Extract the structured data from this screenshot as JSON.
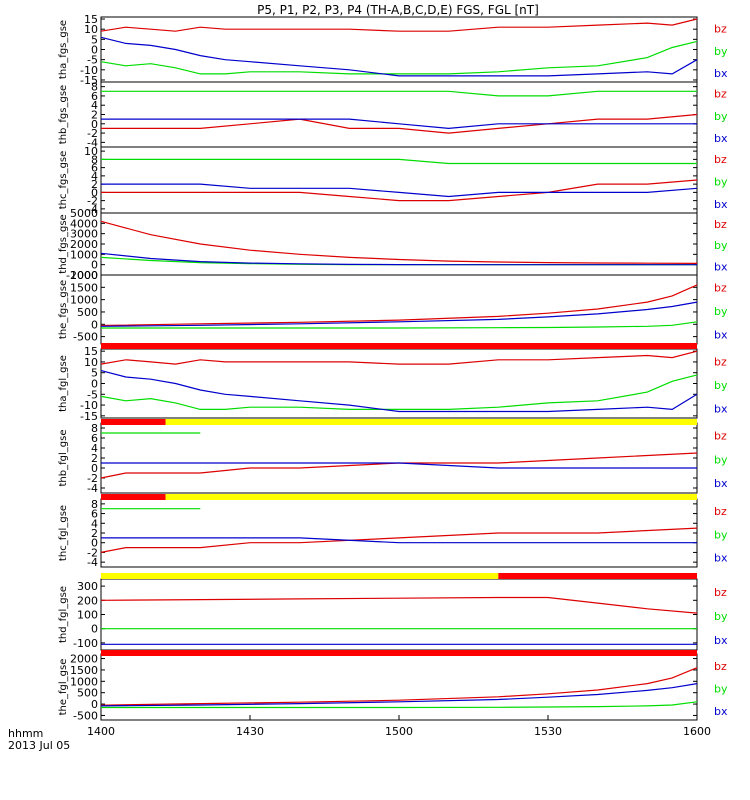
{
  "title": "P5, P1, P2, P3, P4 (TH-A,B,C,D,E) FGS, FGL [nT]",
  "x_axis": {
    "tick_labels": [
      "1400",
      "1430",
      "1500",
      "1530",
      "1600"
    ],
    "label_line1": "hhmm",
    "label_line2": "2013 Jul 05"
  },
  "colors": {
    "bz": "#dd0000",
    "by": "#00dd00",
    "bx": "#0000cc",
    "bar_red": "#ff0000",
    "bar_yellow": "#ffff00",
    "axis": "#000000"
  },
  "legend_labels": [
    "bz",
    "by",
    "bx"
  ],
  "chart_data": [
    {
      "type": "line",
      "ylabel": "tha_fgs_gse",
      "ylim": [
        -16,
        16
      ],
      "yticks": [
        "-15",
        "-10",
        "-5",
        "0",
        "5",
        "10",
        "15"
      ],
      "x": [
        0,
        5,
        10,
        15,
        20,
        25,
        30,
        40,
        50,
        60,
        70,
        80,
        90,
        100,
        110,
        115,
        120
      ],
      "series": [
        {
          "name": "bz",
          "values": [
            9,
            11,
            10,
            9,
            11,
            10,
            10,
            10,
            10,
            9,
            9,
            11,
            11,
            12,
            13,
            12,
            15
          ]
        },
        {
          "name": "by",
          "values": [
            -6,
            -8,
            -7,
            -9,
            -12,
            -12,
            -11,
            -11,
            -12,
            -12,
            -12,
            -11,
            -9,
            -8,
            -4,
            1,
            4
          ]
        },
        {
          "name": "bx",
          "values": [
            6,
            3,
            2,
            0,
            -3,
            -5,
            -6,
            -8,
            -10,
            -13,
            -13,
            -13,
            -13,
            -12,
            -11,
            -12,
            -5
          ]
        }
      ]
    },
    {
      "type": "line",
      "ylabel": "thb_fgs_gse",
      "ylim": [
        -5,
        9
      ],
      "yticks": [
        "-4",
        "-2",
        "0",
        "2",
        "4",
        "6",
        "8"
      ],
      "x": [
        0,
        10,
        20,
        30,
        40,
        50,
        60,
        70,
        80,
        90,
        100,
        110,
        120
      ],
      "series": [
        {
          "name": "bz",
          "values": [
            -1,
            -1,
            -1,
            0,
            1,
            -1,
            -1,
            -2,
            -1,
            0,
            1,
            1,
            2
          ]
        },
        {
          "name": "by",
          "values": [
            7,
            7,
            7,
            7,
            7,
            7,
            7,
            7,
            6,
            6,
            7,
            7,
            7
          ]
        },
        {
          "name": "bx",
          "values": [
            1,
            1,
            1,
            1,
            1,
            1,
            0,
            -1,
            0,
            0,
            0,
            0,
            0
          ]
        }
      ]
    },
    {
      "type": "line",
      "ylabel": "thc_fgs_gse",
      "ylim": [
        -5,
        11
      ],
      "yticks": [
        "-4",
        "-2",
        "0",
        "2",
        "4",
        "6",
        "8",
        "10"
      ],
      "x": [
        0,
        10,
        20,
        30,
        40,
        50,
        60,
        70,
        80,
        90,
        100,
        110,
        120
      ],
      "series": [
        {
          "name": "bz",
          "values": [
            0,
            0,
            0,
            0,
            0,
            -1,
            -2,
            -2,
            -1,
            0,
            2,
            2,
            3
          ]
        },
        {
          "name": "by",
          "values": [
            8,
            8,
            8,
            8,
            8,
            8,
            8,
            7,
            7,
            7,
            7,
            7,
            7
          ]
        },
        {
          "name": "bx",
          "values": [
            2,
            2,
            2,
            1,
            1,
            1,
            0,
            -1,
            0,
            0,
            0,
            0,
            1
          ]
        }
      ]
    },
    {
      "type": "line",
      "ylabel": "thd_fgs_gse",
      "ylim": [
        -1000,
        5000
      ],
      "yticks": [
        "-1000",
        "0",
        "1000",
        "2000",
        "3000",
        "4000",
        "5000"
      ],
      "x": [
        0,
        10,
        20,
        30,
        40,
        50,
        60,
        70,
        80,
        90,
        100,
        110,
        120
      ],
      "series": [
        {
          "name": "bz",
          "values": [
            4200,
            2900,
            2000,
            1400,
            1000,
            700,
            500,
            350,
            260,
            200,
            160,
            140,
            120
          ]
        },
        {
          "name": "by",
          "values": [
            700,
            400,
            200,
            100,
            40,
            0,
            0,
            0,
            0,
            0,
            0,
            0,
            0
          ]
        },
        {
          "name": "bx",
          "values": [
            1100,
            600,
            300,
            150,
            80,
            30,
            10,
            0,
            0,
            0,
            0,
            0,
            0
          ]
        }
      ]
    },
    {
      "type": "line",
      "ylabel": "the_fgs_gse",
      "ylim": [
        -800,
        2000
      ],
      "yticks": [
        "-500",
        "0",
        "500",
        "1000",
        "1500",
        "2000"
      ],
      "x": [
        0,
        20,
        40,
        60,
        80,
        90,
        100,
        110,
        115,
        120
      ],
      "series": [
        {
          "name": "bz",
          "values": [
            -50,
            20,
            80,
            170,
            320,
            450,
            620,
            900,
            1150,
            1600
          ]
        },
        {
          "name": "by",
          "values": [
            -150,
            -150,
            -150,
            -150,
            -140,
            -130,
            -110,
            -80,
            -40,
            100
          ]
        },
        {
          "name": "bx",
          "values": [
            -80,
            -40,
            20,
            100,
            200,
            300,
            420,
            600,
            720,
            900
          ]
        }
      ]
    },
    {
      "type": "line",
      "ylabel": "tha_fgl_gse",
      "ylim": [
        -16,
        16
      ],
      "yticks": [
        "-15",
        "-10",
        "-5",
        "0",
        "5",
        "10",
        "15"
      ],
      "x": [
        0,
        5,
        10,
        15,
        20,
        25,
        30,
        40,
        50,
        60,
        70,
        80,
        90,
        100,
        110,
        115,
        120
      ],
      "series": [
        {
          "name": "bz",
          "values": [
            9,
            11,
            10,
            9,
            11,
            10,
            10,
            10,
            10,
            9,
            9,
            11,
            11,
            12,
            13,
            12,
            15
          ]
        },
        {
          "name": "by",
          "values": [
            -6,
            -8,
            -7,
            -9,
            -12,
            -12,
            -11,
            -11,
            -12,
            -12,
            -12,
            -11,
            -9,
            -8,
            -4,
            1,
            4
          ]
        },
        {
          "name": "bx",
          "values": [
            6,
            3,
            2,
            0,
            -3,
            -5,
            -6,
            -8,
            -10,
            -13,
            -13,
            -13,
            -13,
            -12,
            -11,
            -12,
            -5
          ]
        }
      ]
    },
    {
      "type": "line",
      "ylabel": "thb_fgl_gse",
      "ylim": [
        -5,
        9
      ],
      "yticks": [
        "-4",
        "-2",
        "0",
        "2",
        "4",
        "6",
        "8"
      ],
      "x": [
        0,
        5,
        10,
        15,
        20,
        30,
        40,
        60,
        80,
        100,
        120
      ],
      "series": [
        {
          "name": "bz",
          "values": [
            -2,
            -1,
            -1,
            -1,
            -1,
            0,
            0,
            1,
            1,
            2,
            3
          ]
        },
        {
          "name": "by",
          "values": [
            7,
            7,
            7,
            7,
            7,
            null,
            null,
            null,
            null,
            null,
            null
          ]
        },
        {
          "name": "bx",
          "values": [
            1,
            1,
            1,
            1,
            1,
            1,
            1,
            1,
            0,
            0,
            0
          ]
        }
      ]
    },
    {
      "type": "line",
      "ylabel": "thc_fgl_gse",
      "ylim": [
        -5,
        9
      ],
      "yticks": [
        "-4",
        "-2",
        "0",
        "2",
        "4",
        "6",
        "8"
      ],
      "x": [
        0,
        5,
        10,
        15,
        20,
        30,
        40,
        60,
        80,
        100,
        120
      ],
      "series": [
        {
          "name": "bz",
          "values": [
            -2,
            -1,
            -1,
            -1,
            -1,
            0,
            0,
            1,
            2,
            2,
            3
          ]
        },
        {
          "name": "by",
          "values": [
            7,
            7,
            7,
            7,
            7,
            null,
            null,
            null,
            null,
            null,
            null
          ]
        },
        {
          "name": "bx",
          "values": [
            1,
            1,
            1,
            1,
            1,
            1,
            1,
            0,
            0,
            0,
            0
          ]
        }
      ]
    },
    {
      "type": "line",
      "ylabel": "thd_fgl_gse",
      "ylim": [
        -150,
        350
      ],
      "yticks": [
        "-100",
        "0",
        "100",
        "200",
        "300"
      ],
      "x": [
        0,
        20,
        40,
        60,
        80,
        90,
        100,
        110,
        120
      ],
      "series": [
        {
          "name": "bz",
          "values": [
            200,
            205,
            210,
            215,
            220,
            220,
            180,
            140,
            110
          ]
        },
        {
          "name": "by",
          "values": [
            0,
            0,
            0,
            0,
            0,
            0,
            0,
            0,
            0
          ]
        },
        {
          "name": "bx",
          "values": [
            -110,
            -110,
            -110,
            -110,
            -110,
            -110,
            -110,
            -110,
            -110
          ]
        }
      ]
    },
    {
      "type": "line",
      "ylabel": "the_fgl_gse",
      "ylim": [
        -700,
        2200
      ],
      "yticks": [
        "-500",
        "0",
        "500",
        "1000",
        "1500",
        "2000"
      ],
      "x": [
        0,
        20,
        40,
        60,
        80,
        90,
        100,
        110,
        115,
        120
      ],
      "series": [
        {
          "name": "bz",
          "values": [
            -50,
            20,
            80,
            170,
            320,
            450,
            620,
            900,
            1150,
            1600
          ]
        },
        {
          "name": "by",
          "values": [
            -150,
            -150,
            -150,
            -150,
            -140,
            -130,
            -110,
            -80,
            -40,
            100
          ]
        },
        {
          "name": "bx",
          "values": [
            -80,
            -40,
            20,
            100,
            200,
            300,
            420,
            600,
            720,
            900
          ]
        }
      ]
    }
  ],
  "status_bars": [
    {
      "after_panel": 4,
      "segments": [
        {
          "from": 0,
          "to": 120,
          "color": "red"
        }
      ]
    },
    {
      "after_panel": 5,
      "segments": [
        {
          "from": 0,
          "to": 13,
          "color": "red"
        },
        {
          "from": 13,
          "to": 120,
          "color": "yellow"
        }
      ]
    },
    {
      "after_panel": 6,
      "segments": [
        {
          "from": 0,
          "to": 13,
          "color": "red"
        },
        {
          "from": 13,
          "to": 120,
          "color": "yellow"
        }
      ]
    },
    {
      "after_panel": 7,
      "segments": [
        {
          "from": 0,
          "to": 80,
          "color": "yellow"
        },
        {
          "from": 80,
          "to": 120,
          "color": "red"
        }
      ]
    },
    {
      "after_panel": 8,
      "segments": [
        {
          "from": 0,
          "to": 120,
          "color": "red"
        }
      ]
    }
  ]
}
